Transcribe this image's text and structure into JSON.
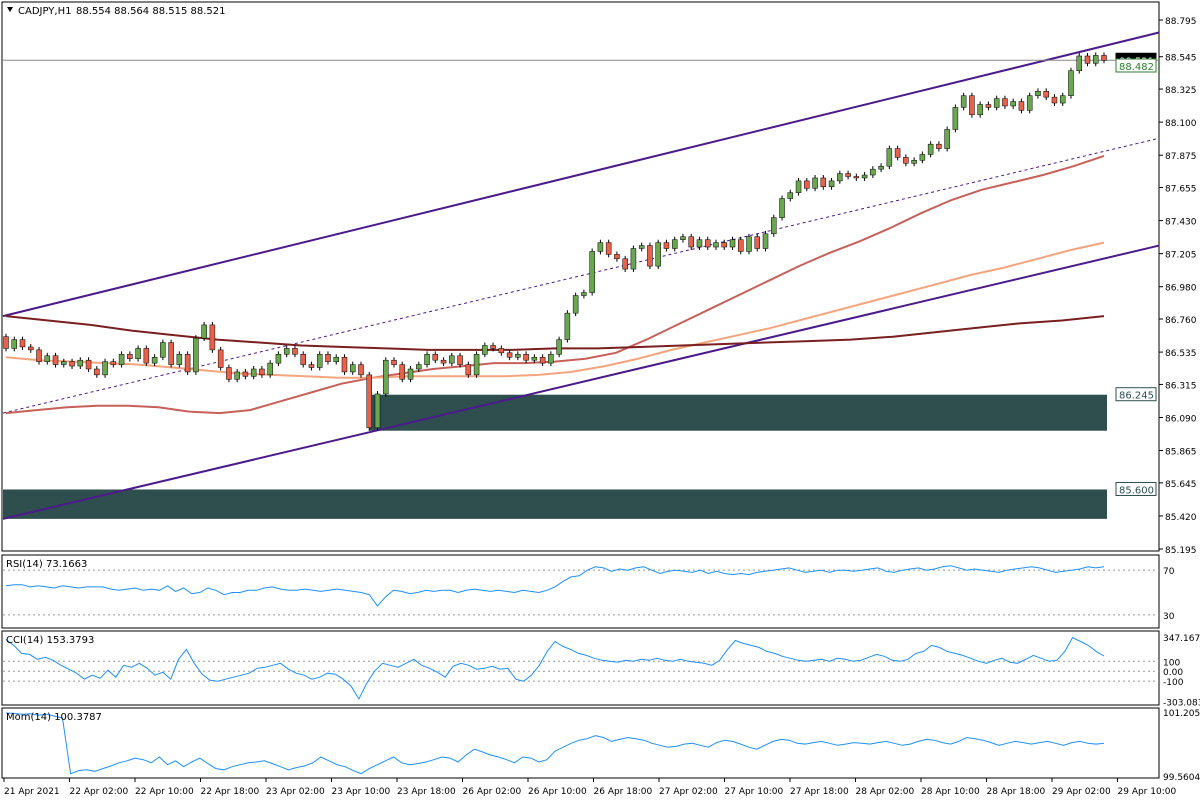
{
  "header": {
    "symbol": "CADJPY,H1",
    "ohlc": "88.554 88.564 88.515 88.521"
  },
  "chart_data": [
    {
      "type": "candlestick",
      "title": "CADJPY,H1 88.554 88.564 88.515 88.521",
      "ylim": [
        85.195,
        88.795
      ],
      "y_ticks": [
        "88.795",
        "88.545",
        "88.325",
        "88.100",
        "87.875",
        "87.655",
        "87.430",
        "87.205",
        "86.980",
        "86.760",
        "86.535",
        "86.315",
        "86.090",
        "85.865",
        "85.645",
        "85.420",
        "85.195"
      ],
      "x_ticks": [
        "21 Apr 2021",
        "22 Apr 02:00",
        "22 Apr 10:00",
        "22 Apr 18:00",
        "23 Apr 02:00",
        "23 Apr 10:00",
        "23 Apr 18:00",
        "26 Apr 02:00",
        "26 Apr 10:00",
        "26 Apr 18:00",
        "27 Apr 02:00",
        "27 Apr 10:00",
        "27 Apr 18:00",
        "28 Apr 02:00",
        "28 Apr 10:00",
        "28 Apr 18:00",
        "29 Apr 02:00",
        "29 Apr 10:00"
      ],
      "price_labels": {
        "current": "88.521",
        "line": "88.482",
        "zone1": "86.245",
        "zone2": "85.600"
      },
      "candles": [
        [
          86.64,
          86.56
        ],
        [
          86.56,
          86.62
        ],
        [
          86.62,
          86.57
        ],
        [
          86.57,
          86.55
        ],
        [
          86.55,
          86.47
        ],
        [
          86.47,
          86.51
        ],
        [
          86.51,
          86.45
        ],
        [
          86.45,
          86.47
        ],
        [
          86.47,
          86.44
        ],
        [
          86.44,
          86.48
        ],
        [
          86.48,
          86.42
        ],
        [
          86.42,
          86.38
        ],
        [
          86.38,
          86.47
        ],
        [
          86.47,
          86.45
        ],
        [
          86.45,
          86.52
        ],
        [
          86.52,
          86.49
        ],
        [
          86.49,
          86.56
        ],
        [
          86.56,
          86.46
        ],
        [
          86.46,
          86.5
        ],
        [
          86.5,
          86.6
        ],
        [
          86.6,
          86.45
        ],
        [
          86.45,
          86.52
        ],
        [
          86.52,
          86.4
        ],
        [
          86.4,
          86.63
        ],
        [
          86.63,
          86.72
        ],
        [
          86.72,
          86.55
        ],
        [
          86.55,
          86.43
        ],
        [
          86.43,
          86.35
        ],
        [
          86.35,
          86.4
        ],
        [
          86.4,
          86.37
        ],
        [
          86.37,
          86.42
        ],
        [
          86.42,
          86.38
        ],
        [
          86.38,
          86.46
        ],
        [
          86.46,
          86.52
        ],
        [
          86.52,
          86.56
        ],
        [
          86.56,
          86.52
        ],
        [
          86.52,
          86.45
        ],
        [
          86.45,
          86.43
        ],
        [
          86.43,
          86.52
        ],
        [
          86.52,
          86.47
        ],
        [
          86.47,
          86.5
        ],
        [
          86.5,
          86.4
        ],
        [
          86.4,
          86.45
        ],
        [
          86.45,
          86.38
        ],
        [
          86.38,
          86.02
        ],
        [
          86.02,
          86.25
        ],
        [
          86.25,
          86.48
        ],
        [
          86.48,
          86.45
        ],
        [
          86.45,
          86.35
        ],
        [
          86.35,
          86.42
        ],
        [
          86.42,
          86.45
        ],
        [
          86.45,
          86.52
        ],
        [
          86.52,
          86.48
        ],
        [
          86.48,
          86.46
        ],
        [
          86.46,
          86.51
        ],
        [
          86.51,
          86.45
        ],
        [
          86.45,
          86.38
        ],
        [
          86.38,
          86.52
        ],
        [
          86.52,
          86.58
        ],
        [
          86.58,
          86.56
        ],
        [
          86.56,
          86.53
        ],
        [
          86.53,
          86.5
        ],
        [
          86.5,
          86.52
        ],
        [
          86.52,
          86.48
        ],
        [
          86.48,
          86.5
        ],
        [
          86.5,
          86.46
        ],
        [
          86.46,
          86.52
        ],
        [
          86.52,
          86.62
        ],
        [
          86.62,
          86.8
        ],
        [
          86.8,
          86.92
        ],
        [
          86.92,
          86.94
        ],
        [
          86.94,
          87.22
        ],
        [
          87.22,
          87.28
        ],
        [
          87.28,
          87.2
        ],
        [
          87.2,
          87.17
        ],
        [
          87.17,
          87.1
        ],
        [
          87.1,
          87.24
        ],
        [
          87.24,
          87.26
        ],
        [
          87.26,
          87.12
        ],
        [
          87.12,
          87.28
        ],
        [
          87.28,
          87.24
        ],
        [
          87.24,
          87.3
        ],
        [
          87.3,
          87.32
        ],
        [
          87.32,
          87.25
        ],
        [
          87.25,
          87.3
        ],
        [
          87.3,
          87.25
        ],
        [
          87.25,
          87.28
        ],
        [
          87.28,
          87.25
        ],
        [
          87.25,
          87.3
        ],
        [
          87.3,
          87.22
        ],
        [
          87.22,
          87.32
        ],
        [
          87.32,
          87.24
        ],
        [
          87.24,
          87.34
        ],
        [
          87.34,
          87.45
        ],
        [
          87.45,
          87.58
        ],
        [
          87.58,
          87.62
        ],
        [
          87.62,
          87.7
        ],
        [
          87.7,
          87.65
        ],
        [
          87.65,
          87.72
        ],
        [
          87.72,
          87.66
        ],
        [
          87.66,
          87.7
        ],
        [
          87.7,
          87.75
        ],
        [
          87.75,
          87.73
        ],
        [
          87.73,
          87.72
        ],
        [
          87.72,
          87.74
        ],
        [
          87.74,
          87.78
        ],
        [
          87.78,
          87.8
        ],
        [
          87.8,
          87.92
        ],
        [
          87.92,
          87.86
        ],
        [
          87.86,
          87.82
        ],
        [
          87.82,
          87.84
        ],
        [
          87.84,
          87.88
        ],
        [
          87.88,
          87.95
        ],
        [
          87.95,
          87.92
        ],
        [
          87.92,
          88.05
        ],
        [
          88.05,
          88.2
        ],
        [
          88.2,
          88.28
        ],
        [
          88.28,
          88.15
        ],
        [
          88.15,
          88.22
        ],
        [
          88.22,
          88.2
        ],
        [
          88.2,
          88.26
        ],
        [
          88.26,
          88.21
        ],
        [
          88.21,
          88.24
        ],
        [
          88.24,
          88.18
        ],
        [
          88.18,
          88.28
        ],
        [
          88.28,
          88.31
        ],
        [
          88.31,
          88.27
        ],
        [
          88.27,
          88.23
        ],
        [
          88.23,
          88.28
        ],
        [
          88.28,
          88.45
        ],
        [
          88.45,
          88.55
        ],
        [
          88.55,
          88.5
        ],
        [
          88.5,
          88.554
        ],
        [
          88.554,
          88.521
        ]
      ],
      "series": [
        {
          "name": "",
          "color": "#c8605a",
          "values": [
            86.12,
            86.14,
            86.16,
            86.17,
            86.17,
            86.16,
            86.13,
            86.12,
            86.14,
            86.2,
            86.26,
            86.32,
            86.36,
            86.39,
            86.42,
            86.44,
            86.46,
            86.46,
            86.47,
            86.49,
            86.53,
            86.62,
            86.72,
            86.82,
            86.92,
            87.02,
            87.12,
            87.21,
            87.29,
            87.38,
            87.48,
            87.57,
            87.64,
            87.69,
            87.74,
            87.8,
            87.87
          ]
        },
        {
          "name": "",
          "color": "#f4a57d",
          "values": [
            86.5,
            86.48,
            86.47,
            86.46,
            86.45,
            86.43,
            86.41,
            86.39,
            86.38,
            86.37,
            86.36,
            86.36,
            86.37,
            86.37,
            86.37,
            86.37,
            86.38,
            86.4,
            86.44,
            86.49,
            86.55,
            86.6,
            86.65,
            86.7,
            86.76,
            86.82,
            86.88,
            86.94,
            87.0,
            87.06,
            87.11,
            87.17,
            87.23,
            87.28
          ]
        },
        {
          "name": "",
          "color": "#7a1f1f",
          "values": [
            86.78,
            86.75,
            86.72,
            86.68,
            86.65,
            86.62,
            86.6,
            86.58,
            86.57,
            86.56,
            86.55,
            86.55,
            86.55,
            86.56,
            86.56,
            86.57,
            86.58,
            86.59,
            86.6,
            86.61,
            86.62,
            86.64,
            86.67,
            86.7,
            86.73,
            86.75,
            86.78
          ]
        }
      ]
    },
    {
      "type": "line",
      "title": "RSI(14) 73.1663",
      "ylim": [
        20,
        80
      ],
      "y_ticks": [
        "70",
        "30"
      ],
      "values": [
        56,
        57,
        57,
        55,
        56,
        55,
        54,
        56,
        55,
        54,
        55,
        55,
        55,
        53,
        52,
        53,
        54,
        52,
        53,
        52,
        56,
        51,
        54,
        49,
        50,
        54,
        52,
        48,
        50,
        50,
        52,
        52,
        54,
        55,
        53,
        52,
        52,
        53,
        52,
        51,
        52,
        53,
        52,
        51,
        50,
        48,
        38,
        46,
        52,
        51,
        49,
        50,
        52,
        51,
        52,
        52,
        50,
        52,
        53,
        52,
        51,
        52,
        51,
        50,
        52,
        51,
        50,
        52,
        55,
        60,
        64,
        65,
        70,
        73,
        72,
        69,
        71,
        70,
        72,
        73,
        70,
        67,
        69,
        70,
        69,
        68,
        70,
        67,
        69,
        67,
        66,
        67,
        66,
        68,
        69,
        70,
        71,
        72,
        70,
        68,
        69,
        70,
        68,
        70,
        70,
        69,
        70,
        71,
        72,
        69,
        68,
        70,
        71,
        72,
        70,
        71,
        73,
        74,
        72,
        70,
        71,
        70,
        69,
        68,
        70,
        71,
        72,
        73,
        72,
        70,
        68,
        69,
        70,
        71,
        73,
        72,
        73
      ]
    },
    {
      "type": "line",
      "title": "CCI(14) 153.3793",
      "ylim": [
        -320,
        365
      ],
      "y_ticks": [
        "347.1671",
        "100",
        "0.00",
        "-100",
        "-303.083"
      ],
      "values": [
        320,
        260,
        180,
        170,
        120,
        140,
        110,
        60,
        20,
        -20,
        -80,
        -40,
        -70,
        10,
        -60,
        60,
        40,
        80,
        30,
        -40,
        -10,
        -80,
        120,
        220,
        80,
        -30,
        -90,
        -100,
        -80,
        -60,
        -40,
        -20,
        30,
        40,
        60,
        80,
        20,
        -20,
        -40,
        -80,
        -60,
        -20,
        -30,
        -80,
        -150,
        -280,
        -120,
        0,
        80,
        60,
        40,
        80,
        120,
        60,
        30,
        -10,
        -60,
        50,
        80,
        60,
        20,
        30,
        50,
        20,
        30,
        -80,
        -100,
        -40,
        60,
        200,
        300,
        250,
        220,
        180,
        160,
        130,
        110,
        100,
        90,
        110,
        100,
        120,
        110,
        130,
        110,
        100,
        120,
        100,
        90,
        80,
        60,
        110,
        220,
        310,
        280,
        260,
        240,
        200,
        180,
        150,
        130,
        110,
        100,
        110,
        120,
        100,
        130,
        120,
        100,
        110,
        140,
        170,
        150,
        110,
        100,
        120,
        180,
        200,
        260,
        240,
        200,
        180,
        160,
        130,
        100,
        80,
        110,
        130,
        90,
        80,
        120,
        160,
        130,
        100,
        110,
        200,
        340,
        300,
        260,
        200,
        153
      ]
    },
    {
      "type": "line",
      "title": "Mom(14) 100.3787",
      "ylim": [
        99.5604,
        101.2054
      ],
      "y_ticks": [
        "101.2054",
        "99.5604"
      ],
      "values": [
        101.18,
        101.17,
        101.15,
        101.16,
        101.12,
        101.15,
        101.1,
        101.05,
        99.62,
        99.7,
        99.72,
        99.68,
        99.75,
        99.82,
        99.9,
        99.95,
        100.02,
        99.98,
        99.9,
        100.05,
        99.85,
        99.95,
        99.8,
        99.92,
        100.02,
        99.88,
        99.75,
        99.72,
        99.8,
        99.85,
        99.9,
        99.92,
        99.95,
        99.88,
        99.8,
        99.72,
        99.78,
        99.82,
        99.9,
        100.05,
        99.95,
        99.85,
        99.8,
        99.7,
        99.62,
        99.75,
        99.85,
        99.95,
        100.05,
        99.9,
        99.85,
        99.88,
        99.92,
        99.98,
        100.05,
        100.02,
        99.92,
        100.1,
        100.25,
        100.18,
        100.1,
        100.05,
        99.98,
        99.9,
        100.05,
        100.02,
        99.92,
        99.98,
        100.2,
        100.3,
        100.4,
        100.48,
        100.52,
        100.6,
        100.55,
        100.45,
        100.5,
        100.55,
        100.52,
        100.48,
        100.4,
        100.35,
        100.3,
        100.32,
        100.38,
        100.4,
        100.35,
        100.3,
        100.42,
        100.48,
        100.45,
        100.38,
        100.3,
        100.25,
        100.35,
        100.45,
        100.5,
        100.48,
        100.4,
        100.38,
        100.42,
        100.45,
        100.4,
        100.35,
        100.38,
        100.42,
        100.4,
        100.38,
        100.42,
        100.45,
        100.4,
        100.35,
        100.38,
        100.45,
        100.5,
        100.48,
        100.42,
        100.38,
        100.45,
        100.55,
        100.52,
        100.48,
        100.42,
        100.35,
        100.4,
        100.45,
        100.42,
        100.38,
        100.42,
        100.45,
        100.4,
        100.35,
        100.42,
        100.45,
        100.4,
        100.38,
        100.4
      ]
    }
  ]
}
